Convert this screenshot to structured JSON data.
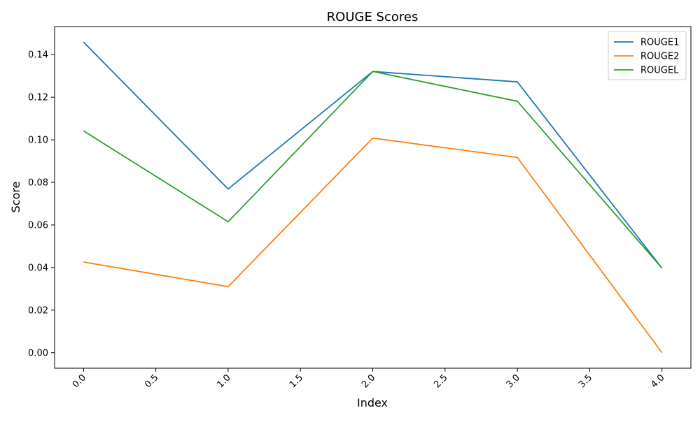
{
  "chart_data": {
    "type": "line",
    "title": "ROUGE Scores",
    "xlabel": "Index",
    "ylabel": "Score",
    "x": [
      0,
      1,
      2,
      3,
      4
    ],
    "xlim": [
      -0.2,
      4.2
    ],
    "ylim": [
      -0.0073,
      0.1532
    ],
    "x_ticks": [
      "0.0",
      "0.5",
      "1.0",
      "1.5",
      "2.0",
      "2.5",
      "3.0",
      "3.5",
      "4.0"
    ],
    "x_tick_values": [
      0,
      0.5,
      1,
      1.5,
      2,
      2.5,
      3,
      3.5,
      4
    ],
    "x_tick_rotation": 45,
    "y_ticks": [
      "0.00",
      "0.02",
      "0.04",
      "0.06",
      "0.08",
      "0.10",
      "0.12",
      "0.14"
    ],
    "y_tick_values": [
      0,
      0.02,
      0.04,
      0.06,
      0.08,
      0.1,
      0.12,
      0.14
    ],
    "grid": false,
    "legend_position": "top-right",
    "series": [
      {
        "name": "ROUGE1",
        "color": "#1f77b4",
        "values": [
          0.1459,
          0.0769,
          0.1321,
          0.1272,
          0.0397
        ]
      },
      {
        "name": "ROUGE2",
        "color": "#ff7f0e",
        "values": [
          0.0426,
          0.031,
          0.1008,
          0.0917,
          0.0
        ]
      },
      {
        "name": "ROUGEL",
        "color": "#2ca02c",
        "values": [
          0.1042,
          0.0615,
          0.1321,
          0.1181,
          0.0397
        ]
      }
    ]
  }
}
